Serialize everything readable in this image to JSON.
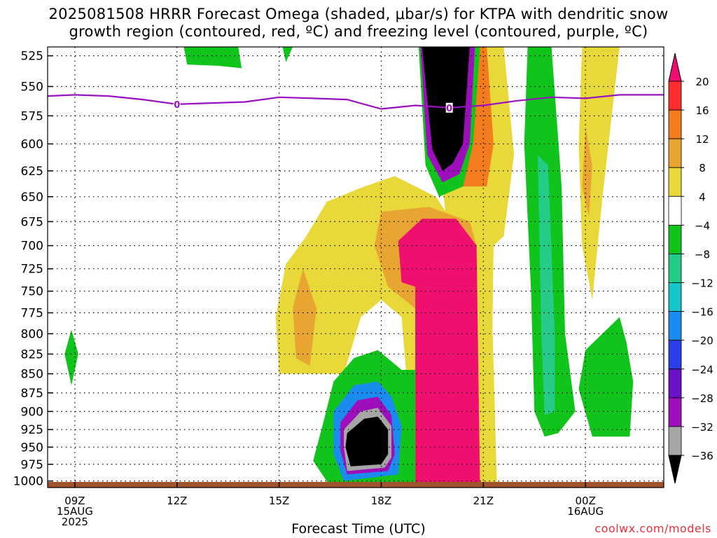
{
  "title": {
    "line1": "2025081508 HRRR Forecast Omega (shaded, μbar/s) for KTPA with dendritic snow",
    "line2": "growth region (contoured, red, ºC) and freezing level (contoured, purple, ºC)"
  },
  "credit": "coolwx.com/models",
  "chart_data": {
    "type": "heatmap",
    "xlabel": "Forecast Time (UTC)",
    "ylabel": "",
    "x_ticks": [
      {
        "hour": 0,
        "lines": [
          "09Z",
          "15AUG",
          "2025"
        ]
      },
      {
        "hour": 3,
        "lines": [
          "12Z"
        ]
      },
      {
        "hour": 6,
        "lines": [
          "15Z"
        ]
      },
      {
        "hour": 9,
        "lines": [
          "18Z"
        ]
      },
      {
        "hour": 12,
        "lines": [
          "21Z"
        ]
      },
      {
        "hour": 15,
        "lines": [
          "00Z",
          "16AUG"
        ]
      }
    ],
    "x_range_hours": [
      -0.8,
      17.3
    ],
    "y_ticks": [
      525,
      550,
      575,
      600,
      625,
      650,
      675,
      700,
      725,
      750,
      775,
      800,
      825,
      850,
      875,
      900,
      925,
      950,
      975,
      1000
    ],
    "y_range_mb": [
      518,
      1010
    ],
    "y_scale": "log",
    "grid": true,
    "colorbar": {
      "labels": [
        "20",
        "16",
        "12",
        "8",
        "4",
        "−4",
        "−8",
        "−12",
        "−16",
        "−20",
        "−24",
        "−28",
        "−32",
        "−36"
      ],
      "colors": [
        "#ee0f6e",
        "#ff2d2d",
        "#f27c1e",
        "#e8a531",
        "#e8d83a",
        "#ffffff",
        "#11c41b",
        "#25cc88",
        "#17c6cc",
        "#1a8cf0",
        "#2a3fe8",
        "#6a12c6",
        "#9e0fbc",
        "#a6a6a6",
        "#000000"
      ]
    },
    "freezing_level": {
      "label": "0",
      "color": "#9a10c2",
      "points": [
        [
          -0.8,
          558
        ],
        [
          0,
          557
        ],
        [
          1,
          558
        ],
        [
          2,
          561
        ],
        [
          3,
          565
        ],
        [
          4,
          564
        ],
        [
          5,
          563
        ],
        [
          6,
          559
        ],
        [
          7,
          560
        ],
        [
          8,
          561
        ],
        [
          9,
          569
        ],
        [
          10,
          566
        ],
        [
          11,
          568
        ],
        [
          12,
          566
        ],
        [
          13,
          562
        ],
        [
          14,
          559
        ],
        [
          15,
          560
        ],
        [
          16,
          557
        ],
        [
          17.3,
          557
        ]
      ],
      "label_hours": [
        3,
        11
      ]
    },
    "surface_color": "#a0522d",
    "shaded_regions": [
      {
        "name": "descent-column-yellow",
        "fill": "#e8d83a",
        "points": [
          [
            10.8,
            518
          ],
          [
            12.6,
            518
          ],
          [
            12.9,
            610
          ],
          [
            12.6,
            690
          ],
          [
            12.3,
            700
          ],
          [
            12.2,
            1010
          ],
          [
            11.2,
            1010
          ],
          [
            11.0,
            700
          ],
          [
            10.8,
            640
          ]
        ]
      },
      {
        "name": "descent-column-orange",
        "fill": "#f27c1e",
        "points": [
          [
            10.9,
            518
          ],
          [
            12.1,
            518
          ],
          [
            12.3,
            600
          ],
          [
            12.1,
            640
          ],
          [
            11.0,
            640
          ]
        ]
      },
      {
        "name": "ascent-core-upper-green",
        "fill": "#11c41b",
        "points": [
          [
            10.1,
            518
          ],
          [
            11.9,
            518
          ],
          [
            11.7,
            600
          ],
          [
            11.4,
            640
          ],
          [
            10.7,
            650
          ],
          [
            10.3,
            620
          ]
        ]
      },
      {
        "name": "ascent-core-upper-purple",
        "fill": "#9e0fbc",
        "points": [
          [
            10.15,
            518
          ],
          [
            11.75,
            518
          ],
          [
            11.6,
            600
          ],
          [
            11.3,
            628
          ],
          [
            10.8,
            636
          ],
          [
            10.35,
            610
          ]
        ]
      },
      {
        "name": "ascent-core-upper-black",
        "fill": "#000000",
        "points": [
          [
            10.2,
            518
          ],
          [
            11.6,
            518
          ],
          [
            11.4,
            600
          ],
          [
            11.1,
            618
          ],
          [
            10.8,
            625
          ],
          [
            10.5,
            605
          ]
        ]
      },
      {
        "name": "broad-yellow-lower",
        "fill": "#e8d83a",
        "points": [
          [
            7.4,
            655
          ],
          [
            8.5,
            640
          ],
          [
            9.4,
            630
          ],
          [
            10.6,
            650
          ],
          [
            11.0,
            670
          ],
          [
            12.2,
            700
          ],
          [
            12.4,
            1010
          ],
          [
            10.0,
            1010
          ],
          [
            9.6,
            780
          ],
          [
            9.0,
            760
          ],
          [
            8.4,
            780
          ],
          [
            7.9,
            850
          ],
          [
            7.2,
            850
          ],
          [
            6.0,
            850
          ],
          [
            5.9,
            780
          ],
          [
            6.2,
            720
          ],
          [
            6.8,
            690
          ]
        ]
      },
      {
        "name": "broad-orange-lower",
        "fill": "#e8a531",
        "points": [
          [
            9.0,
            665
          ],
          [
            10.4,
            660
          ],
          [
            11.6,
            675
          ],
          [
            11.8,
            700
          ],
          [
            10.0,
            770
          ],
          [
            9.2,
            745
          ],
          [
            8.8,
            700
          ]
        ]
      },
      {
        "name": "left-orange-lens",
        "fill": "#e8a531",
        "points": [
          [
            6.7,
            725
          ],
          [
            7.1,
            770
          ],
          [
            6.9,
            840
          ],
          [
            6.5,
            830
          ],
          [
            6.4,
            770
          ]
        ]
      },
      {
        "name": "descent-pink-column",
        "fill": "#ee0f6e",
        "points": [
          [
            9.5,
            695
          ],
          [
            10.2,
            672
          ],
          [
            11.2,
            672
          ],
          [
            11.8,
            700
          ],
          [
            11.9,
            1005
          ],
          [
            10.0,
            1005
          ],
          [
            10.0,
            745
          ],
          [
            9.6,
            740
          ]
        ]
      },
      {
        "name": "lower-ascent-green",
        "fill": "#11c41b",
        "points": [
          [
            7.6,
            860
          ],
          [
            8.2,
            830
          ],
          [
            8.9,
            820
          ],
          [
            9.6,
            845
          ],
          [
            10.0,
            845
          ],
          [
            10.0,
            1008
          ],
          [
            7.5,
            1008
          ],
          [
            7.0,
            970
          ],
          [
            7.3,
            915
          ]
        ]
      },
      {
        "name": "lower-ascent-blue",
        "fill": "#1a8cf0",
        "points": [
          [
            7.6,
            900
          ],
          [
            8.2,
            865
          ],
          [
            8.9,
            860
          ],
          [
            9.3,
            880
          ],
          [
            9.6,
            920
          ],
          [
            9.5,
            990
          ],
          [
            7.9,
            1000
          ],
          [
            7.6,
            960
          ]
        ]
      },
      {
        "name": "lower-ascent-purple",
        "fill": "#9e0fbc",
        "points": [
          [
            7.8,
            915
          ],
          [
            8.3,
            885
          ],
          [
            8.9,
            880
          ],
          [
            9.3,
            905
          ],
          [
            9.4,
            960
          ],
          [
            9.2,
            985
          ],
          [
            8.0,
            990
          ],
          [
            7.8,
            955
          ]
        ]
      },
      {
        "name": "lower-ascent-gray",
        "fill": "#a6a6a6",
        "points": [
          [
            7.9,
            925
          ],
          [
            8.4,
            900
          ],
          [
            8.9,
            895
          ],
          [
            9.3,
            920
          ],
          [
            9.3,
            965
          ],
          [
            9.1,
            980
          ],
          [
            8.0,
            985
          ],
          [
            7.9,
            950
          ]
        ]
      },
      {
        "name": "lower-ascent-black",
        "fill": "#000000",
        "points": [
          [
            8.0,
            930
          ],
          [
            8.5,
            910
          ],
          [
            8.9,
            907
          ],
          [
            9.2,
            925
          ],
          [
            9.2,
            960
          ],
          [
            9.0,
            975
          ],
          [
            8.1,
            978
          ],
          [
            7.95,
            950
          ]
        ]
      },
      {
        "name": "right-green-column",
        "fill": "#11c41b",
        "points": [
          [
            13.3,
            518
          ],
          [
            14.0,
            518
          ],
          [
            14.3,
            640
          ],
          [
            14.4,
            800
          ],
          [
            14.7,
            900
          ],
          [
            14.2,
            930
          ],
          [
            13.8,
            935
          ],
          [
            13.5,
            900
          ],
          [
            13.4,
            750
          ],
          [
            13.2,
            600
          ]
        ]
      },
      {
        "name": "right-teal-column",
        "fill": "#25cc88",
        "points": [
          [
            13.6,
            610
          ],
          [
            13.9,
            620
          ],
          [
            14.1,
            800
          ],
          [
            14.1,
            900
          ],
          [
            13.8,
            905
          ],
          [
            13.7,
            800
          ]
        ]
      },
      {
        "name": "far-right-green",
        "fill": "#11c41b",
        "points": [
          [
            15.0,
            820
          ],
          [
            16.0,
            780
          ],
          [
            16.2,
            810
          ],
          [
            16.4,
            860
          ],
          [
            16.3,
            935
          ],
          [
            15.2,
            935
          ],
          [
            14.8,
            870
          ]
        ]
      },
      {
        "name": "far-right-yellow",
        "fill": "#e8d83a",
        "points": [
          [
            14.9,
            518
          ],
          [
            16.0,
            518
          ],
          [
            15.5,
            650
          ],
          [
            15.2,
            760
          ],
          [
            14.9,
            700
          ],
          [
            14.8,
            600
          ]
        ]
      },
      {
        "name": "far-right-orange-lens",
        "fill": "#e8a531",
        "points": [
          [
            15.0,
            585
          ],
          [
            15.2,
            620
          ],
          [
            15.1,
            670
          ],
          [
            14.9,
            640
          ]
        ]
      },
      {
        "name": "top-left-green",
        "fill": "#11c41b",
        "points": [
          [
            3.2,
            518
          ],
          [
            4.8,
            518
          ],
          [
            4.9,
            535
          ],
          [
            4.2,
            533
          ],
          [
            3.3,
            532
          ]
        ]
      },
      {
        "name": "top-mid-green",
        "fill": "#11c41b",
        "points": [
          [
            6.1,
            518
          ],
          [
            6.4,
            518
          ],
          [
            6.2,
            530
          ]
        ]
      },
      {
        "name": "left-green-diamond",
        "fill": "#11c41b",
        "points": [
          [
            -0.1,
            795
          ],
          [
            0.1,
            825
          ],
          [
            -0.1,
            865
          ],
          [
            -0.3,
            825
          ]
        ]
      }
    ]
  }
}
